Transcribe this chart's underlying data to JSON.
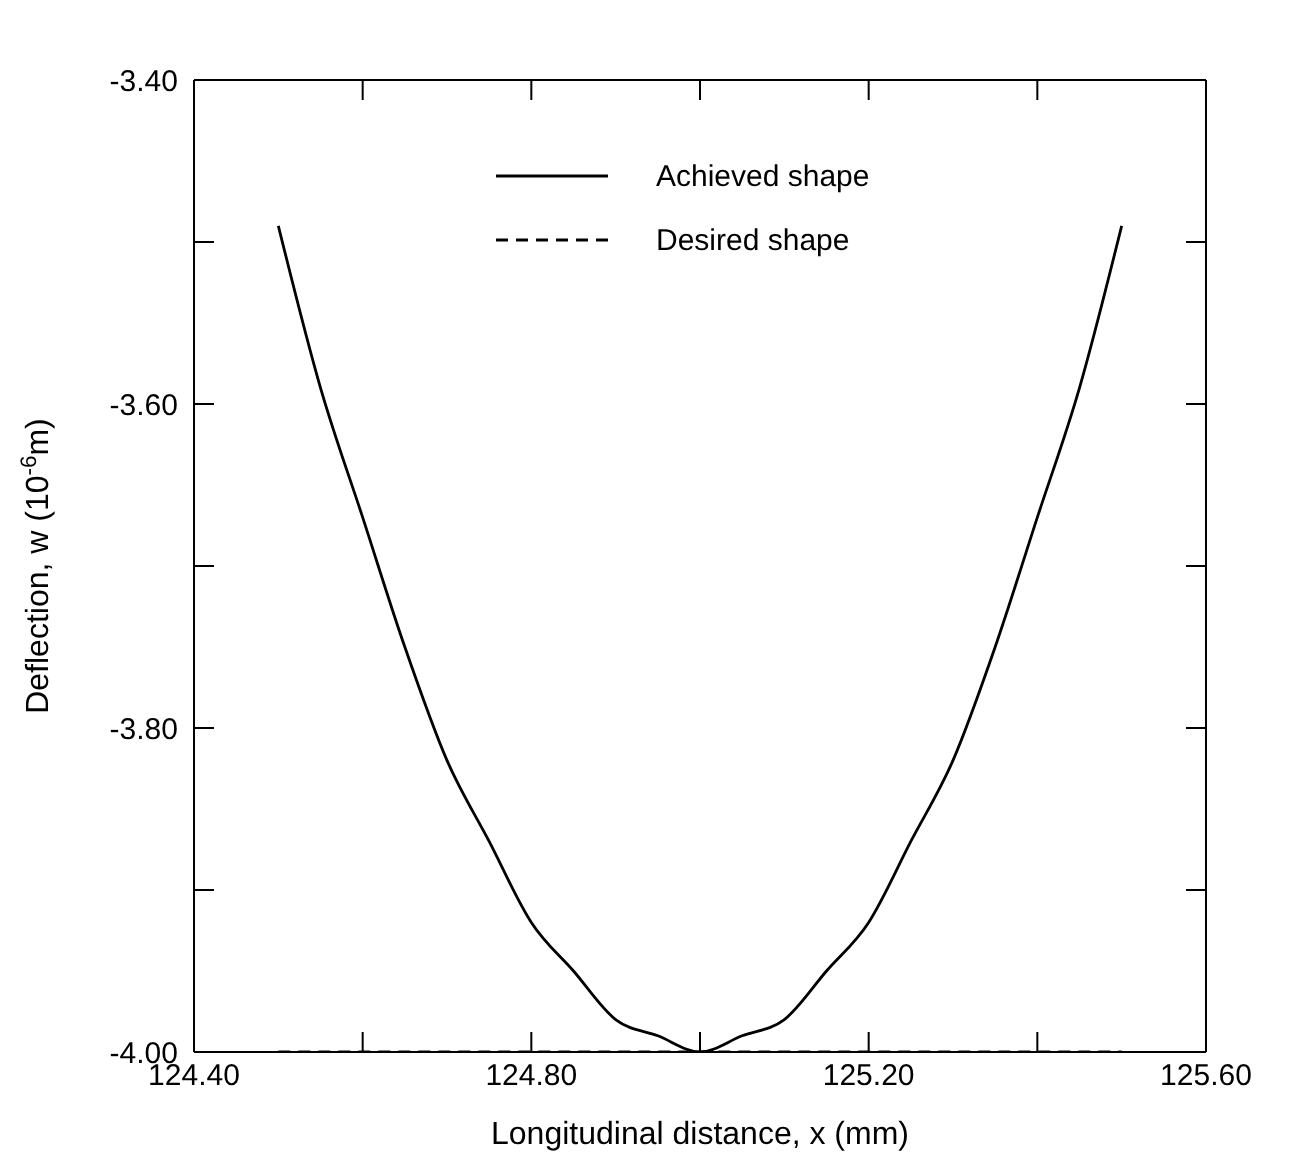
{
  "chart_data": {
    "type": "line",
    "xlabel": "Longitudinal distance, x (mm)",
    "ylabel": "Deflection, w (10$^{-6}$m)",
    "x": [
      124.5,
      124.55,
      124.6,
      124.65,
      124.7,
      124.75,
      124.8,
      124.85,
      124.9,
      124.95,
      125.0,
      125.05,
      125.1,
      125.15,
      125.2,
      125.25,
      125.3,
      125.35,
      125.4,
      125.45,
      125.5
    ],
    "series": [
      {
        "name": "Achieved shape",
        "color": "#000000",
        "line_style": "solid",
        "values": [
          -3.49,
          -3.59,
          -3.67,
          -3.75,
          -3.82,
          -3.87,
          -3.92,
          -3.95,
          -3.98,
          -3.99,
          -4.0,
          -3.99,
          -3.98,
          -3.95,
          -3.92,
          -3.87,
          -3.82,
          -3.75,
          -3.67,
          -3.59,
          -3.49
        ]
      },
      {
        "name": "Desired shape",
        "color": "#000000",
        "line_style": "dashed",
        "values": [
          -4.0,
          -4.0,
          -4.0,
          -4.0,
          -4.0,
          -4.0,
          -4.0,
          -4.0,
          -4.0,
          -4.0,
          -4.0,
          -4.0,
          -4.0,
          -4.0,
          -4.0,
          -4.0,
          -4.0,
          -4.0,
          -4.0,
          -4.0,
          -4.0
        ]
      }
    ],
    "xlim": [
      124.4,
      125.6
    ],
    "xticks": [
      {
        "value": 124.4,
        "label": "124.40"
      },
      {
        "value": 124.6,
        "label": null
      },
      {
        "value": 124.8,
        "label": "124.80"
      },
      {
        "value": 125.0,
        "label": null
      },
      {
        "value": 125.2,
        "label": "125.20"
      },
      {
        "value": 125.4,
        "label": null
      },
      {
        "value": 125.6,
        "label": "125.60"
      }
    ],
    "ylim": [
      -4.0,
      -3.4
    ],
    "yticks": [
      {
        "value": -4.0,
        "label": "-4.00"
      },
      {
        "value": -3.9,
        "label": null
      },
      {
        "value": -3.8,
        "label": "-3.80"
      },
      {
        "value": -3.7,
        "label": null
      },
      {
        "value": -3.6,
        "label": "-3.60"
      },
      {
        "value": -3.5,
        "label": null
      },
      {
        "value": -3.4,
        "label": "-3.40"
      }
    ],
    "legend": "top"
  }
}
